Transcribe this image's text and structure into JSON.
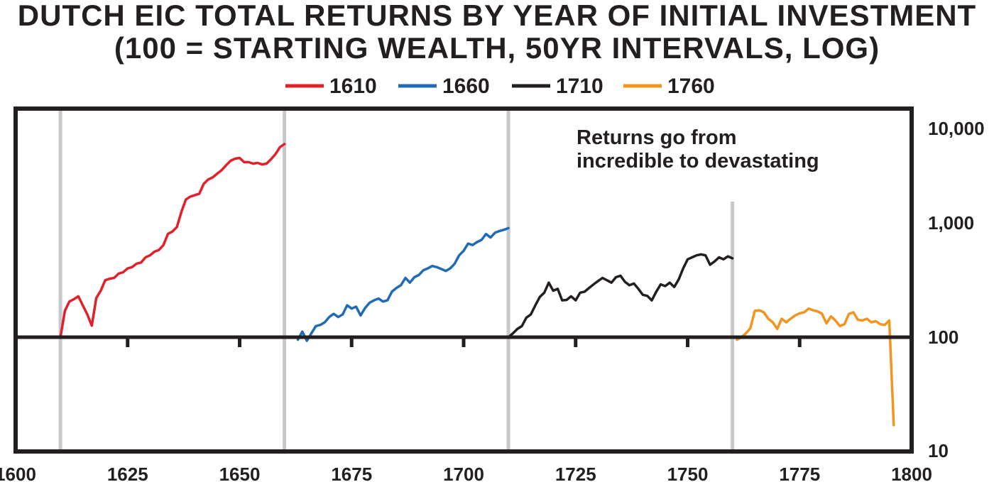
{
  "chart_data": {
    "type": "line",
    "title": "DUTCH EIC TOTAL RETURNS BY YEAR OF INITIAL INVESTMENT",
    "subtitle": "(100 = STARTING WEALTH, 50YR INTERVALS, LOG)",
    "xlabel": "",
    "ylabel": "",
    "xlim": [
      1600,
      1800
    ],
    "ylim": [
      10,
      10000
    ],
    "y_scale": "log",
    "y_axis_side": "right",
    "legend_position": "top-center",
    "x_ticks": [
      1600,
      1625,
      1650,
      1675,
      1700,
      1725,
      1750,
      1775,
      1800
    ],
    "x_tick_labels": [
      "1600",
      "1625",
      "1650",
      "1675",
      "1700",
      "1725",
      "1750",
      "1775",
      "1800"
    ],
    "y_ticks": [
      10,
      100,
      1000,
      10000
    ],
    "y_tick_labels": [
      "10",
      "100",
      "1,000",
      "10,000"
    ],
    "baseline": 100,
    "vertical_markers": [
      1610,
      1660,
      1710,
      1760
    ],
    "annotation": [
      "Returns go from",
      "incredible to devastating"
    ],
    "series": [
      {
        "name": "1610",
        "color": "#e3202a",
        "x": [
          1610,
          1611,
          1612,
          1613,
          1614,
          1615,
          1616,
          1617,
          1618,
          1619,
          1620,
          1621,
          1622,
          1623,
          1624,
          1625,
          1626,
          1627,
          1628,
          1629,
          1630,
          1631,
          1632,
          1633,
          1634,
          1635,
          1636,
          1637,
          1638,
          1639,
          1640,
          1641,
          1642,
          1643,
          1644,
          1645,
          1646,
          1647,
          1648,
          1649,
          1650,
          1651,
          1652,
          1653,
          1654,
          1655,
          1656,
          1657,
          1658,
          1659,
          1660
        ],
        "values": [
          100,
          170,
          205,
          215,
          228,
          190,
          158,
          126,
          220,
          255,
          315,
          325,
          330,
          360,
          370,
          400,
          410,
          440,
          450,
          500,
          520,
          560,
          580,
          640,
          800,
          840,
          920,
          1250,
          1600,
          1700,
          1750,
          1800,
          2200,
          2400,
          2500,
          2700,
          2900,
          3200,
          3500,
          3650,
          3700,
          3400,
          3400,
          3300,
          3350,
          3250,
          3300,
          3600,
          4000,
          4600,
          4900
        ]
      },
      {
        "name": "1660",
        "color": "#1f6bb5",
        "x": [
          1663,
          1664,
          1665,
          1666,
          1667,
          1668,
          1669,
          1670,
          1671,
          1672,
          1673,
          1674,
          1675,
          1676,
          1677,
          1678,
          1679,
          1680,
          1681,
          1682,
          1683,
          1684,
          1685,
          1686,
          1687,
          1688,
          1689,
          1690,
          1691,
          1692,
          1693,
          1694,
          1695,
          1696,
          1697,
          1698,
          1699,
          1700,
          1701,
          1702,
          1703,
          1704,
          1705,
          1706,
          1707,
          1708,
          1709,
          1710
        ],
        "values": [
          95,
          112,
          93,
          108,
          125,
          128,
          135,
          150,
          160,
          150,
          158,
          190,
          178,
          185,
          155,
          180,
          200,
          210,
          218,
          205,
          210,
          250,
          270,
          285,
          330,
          300,
          335,
          350,
          385,
          400,
          420,
          410,
          395,
          380,
          400,
          440,
          520,
          570,
          660,
          640,
          680,
          710,
          800,
          745,
          820,
          850,
          870,
          900
        ]
      },
      {
        "name": "1710",
        "color": "#231f20",
        "x": [
          1710,
          1711,
          1712,
          1713,
          1714,
          1715,
          1716,
          1717,
          1718,
          1719,
          1720,
          1721,
          1722,
          1723,
          1724,
          1725,
          1726,
          1727,
          1728,
          1729,
          1730,
          1731,
          1732,
          1733,
          1734,
          1735,
          1736,
          1737,
          1738,
          1739,
          1740,
          1741,
          1742,
          1743,
          1744,
          1745,
          1746,
          1747,
          1748,
          1749,
          1750,
          1751,
          1752,
          1753,
          1754,
          1755,
          1756,
          1757,
          1758,
          1759,
          1760
        ],
        "values": [
          100,
          108,
          118,
          125,
          148,
          158,
          190,
          225,
          245,
          300,
          255,
          265,
          210,
          212,
          228,
          210,
          245,
          250,
          270,
          290,
          310,
          330,
          315,
          300,
          335,
          345,
          305,
          285,
          295,
          265,
          235,
          230,
          210,
          250,
          290,
          280,
          300,
          275,
          320,
          400,
          480,
          500,
          520,
          530,
          520,
          430,
          460,
          500,
          480,
          510,
          490
        ]
      },
      {
        "name": "1760",
        "color": "#f3941f",
        "x": [
          1761,
          1762,
          1763,
          1764,
          1765,
          1766,
          1767,
          1768,
          1769,
          1770,
          1771,
          1772,
          1773,
          1774,
          1775,
          1776,
          1777,
          1778,
          1779,
          1780,
          1781,
          1782,
          1783,
          1784,
          1785,
          1786,
          1787,
          1788,
          1789,
          1790,
          1791,
          1792,
          1793,
          1794,
          1795,
          1796
        ],
        "values": [
          95,
          100,
          108,
          120,
          170,
          172,
          165,
          145,
          135,
          118,
          145,
          135,
          145,
          155,
          162,
          165,
          178,
          172,
          168,
          160,
          132,
          152,
          140,
          125,
          130,
          160,
          165,
          142,
          140,
          145,
          135,
          138,
          130,
          128,
          140,
          17
        ]
      }
    ]
  }
}
